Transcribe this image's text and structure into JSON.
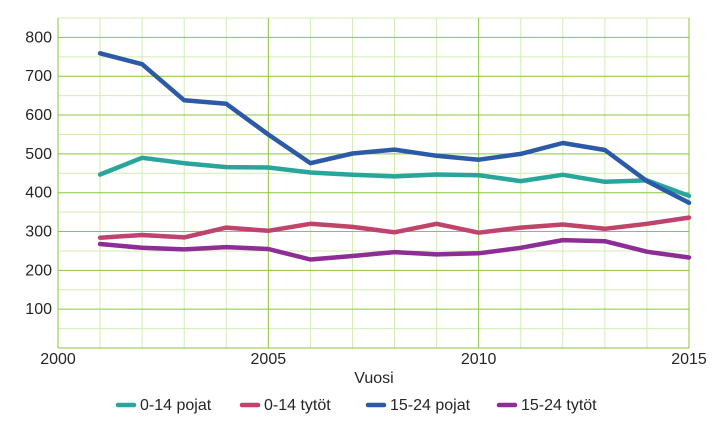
{
  "chart_data": {
    "type": "line",
    "title": "",
    "xlabel": "Vuosi",
    "ylabel": "",
    "xlim": [
      2000,
      2015
    ],
    "ylim": [
      0,
      850
    ],
    "x_ticks": [
      "2000",
      "2005",
      "2010",
      "2015"
    ],
    "y_ticks": [
      "100",
      "200",
      "300",
      "400",
      "500",
      "600",
      "700",
      "800"
    ],
    "grid": true,
    "legend_position": "bottom",
    "x": [
      2001,
      2002,
      2003,
      2004,
      2005,
      2006,
      2007,
      2008,
      2009,
      2010,
      2011,
      2012,
      2013,
      2014,
      2015
    ],
    "series": [
      {
        "name": "0-14 pojat",
        "color": "#2aa59b",
        "values": [
          447,
          490,
          476,
          466,
          465,
          452,
          446,
          442,
          447,
          445,
          430,
          446,
          428,
          432,
          392
        ]
      },
      {
        "name": "0-14 tytöt",
        "color": "#c0426e",
        "values": [
          284,
          291,
          285,
          310,
          302,
          320,
          312,
          298,
          320,
          297,
          310,
          318,
          307,
          320,
          336
        ]
      },
      {
        "name": "15-24 pojat",
        "color": "#2c5aa6",
        "values": [
          759,
          731,
          638,
          629,
          550,
          476,
          501,
          511,
          495,
          485,
          500,
          528,
          510,
          430,
          374
        ]
      },
      {
        "name": "15-24 tytöt",
        "color": "#8e2d95",
        "values": [
          268,
          258,
          254,
          260,
          255,
          228,
          237,
          247,
          241,
          244,
          258,
          278,
          275,
          248,
          233
        ]
      }
    ]
  },
  "colors": {
    "grid_major": "#8cc63f",
    "grid_minor": "#d4ecb4",
    "axis_text": "#262626"
  }
}
